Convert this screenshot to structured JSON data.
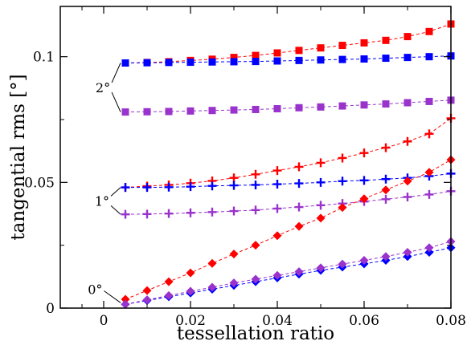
{
  "chart_data": {
    "type": "line",
    "xlabel": "tessellation ratio",
    "ylabel": "tangential rms [°]",
    "xlim": [
      -0.01,
      0.08
    ],
    "ylim": [
      0,
      0.12
    ],
    "xticks": [
      0,
      0.02,
      0.04,
      0.06,
      0.08
    ],
    "xtick_labels": [
      "0",
      "0.02",
      "0.04",
      "0.06",
      "0.08"
    ],
    "yticks": [
      0,
      0.05,
      0.1
    ],
    "ytick_labels": [
      "0",
      "0.05",
      "0.1"
    ],
    "grid": false,
    "x": [
      0.005,
      0.01,
      0.015,
      0.02,
      0.025,
      0.03,
      0.035,
      0.04,
      0.045,
      0.05,
      0.055,
      0.06,
      0.065,
      0.07,
      0.075,
      0.08
    ],
    "series": [
      {
        "group": "2°",
        "color": "#ff0000",
        "marker": "square",
        "values": [
          0.0975,
          0.0977,
          0.098,
          0.0985,
          0.099,
          0.0997,
          0.1005,
          0.1015,
          0.1025,
          0.1035,
          0.1045,
          0.1055,
          0.1065,
          0.108,
          0.11,
          0.113
        ]
      },
      {
        "group": "2°",
        "color": "#0000ff",
        "marker": "square",
        "values": [
          0.0975,
          0.0976,
          0.0977,
          0.0978,
          0.0979,
          0.098,
          0.0981,
          0.0983,
          0.0985,
          0.0987,
          0.0989,
          0.0991,
          0.0994,
          0.0997,
          0.1,
          0.1003
        ]
      },
      {
        "group": "2°",
        "color": "#9933cc",
        "marker": "square",
        "values": [
          0.078,
          0.0781,
          0.0782,
          0.0784,
          0.0786,
          0.0788,
          0.079,
          0.0793,
          0.0797,
          0.08,
          0.0804,
          0.0808,
          0.0812,
          0.0817,
          0.0822,
          0.0827
        ]
      },
      {
        "group": "1°",
        "color": "#ff0000",
        "marker": "plus",
        "values": [
          0.048,
          0.0485,
          0.049,
          0.0497,
          0.0506,
          0.0518,
          0.0532,
          0.0547,
          0.0562,
          0.0578,
          0.0597,
          0.0617,
          0.0638,
          0.0663,
          0.0693,
          0.0755
        ]
      },
      {
        "group": "1°",
        "color": "#0000ff",
        "marker": "plus",
        "values": [
          0.048,
          0.048,
          0.0481,
          0.0483,
          0.0486,
          0.0488,
          0.049,
          0.0493,
          0.0496,
          0.05,
          0.0505,
          0.0508,
          0.0513,
          0.0518,
          0.0525,
          0.0535
        ]
      },
      {
        "group": "1°",
        "color": "#9933cc",
        "marker": "plus",
        "values": [
          0.0373,
          0.0374,
          0.0376,
          0.0379,
          0.0382,
          0.0386,
          0.039,
          0.0396,
          0.0402,
          0.0409,
          0.0416,
          0.0424,
          0.0433,
          0.0442,
          0.0452,
          0.0465
        ]
      },
      {
        "group": "0°",
        "color": "#ff0000",
        "marker": "diamond",
        "values": [
          0.0035,
          0.007,
          0.0105,
          0.014,
          0.0178,
          0.0215,
          0.025,
          0.0288,
          0.0325,
          0.0358,
          0.04,
          0.0435,
          0.047,
          0.0505,
          0.054,
          0.059
        ]
      },
      {
        "group": "0°",
        "color": "#0000ff",
        "marker": "diamond",
        "values": [
          0.0015,
          0.003,
          0.0045,
          0.006,
          0.0075,
          0.009,
          0.0105,
          0.012,
          0.0135,
          0.015,
          0.0163,
          0.0176,
          0.019,
          0.0205,
          0.0222,
          0.024
        ]
      },
      {
        "group": "0°",
        "color": "#9933cc",
        "marker": "diamond",
        "values": [
          0.0015,
          0.0033,
          0.005,
          0.0067,
          0.0083,
          0.01,
          0.0115,
          0.013,
          0.0145,
          0.016,
          0.0175,
          0.019,
          0.0205,
          0.0222,
          0.024,
          0.0265
        ]
      }
    ],
    "annotations": [
      {
        "text": "2°",
        "group": "2°"
      },
      {
        "text": "1°",
        "group": "1°"
      },
      {
        "text": "0°",
        "group": "0°"
      }
    ]
  }
}
